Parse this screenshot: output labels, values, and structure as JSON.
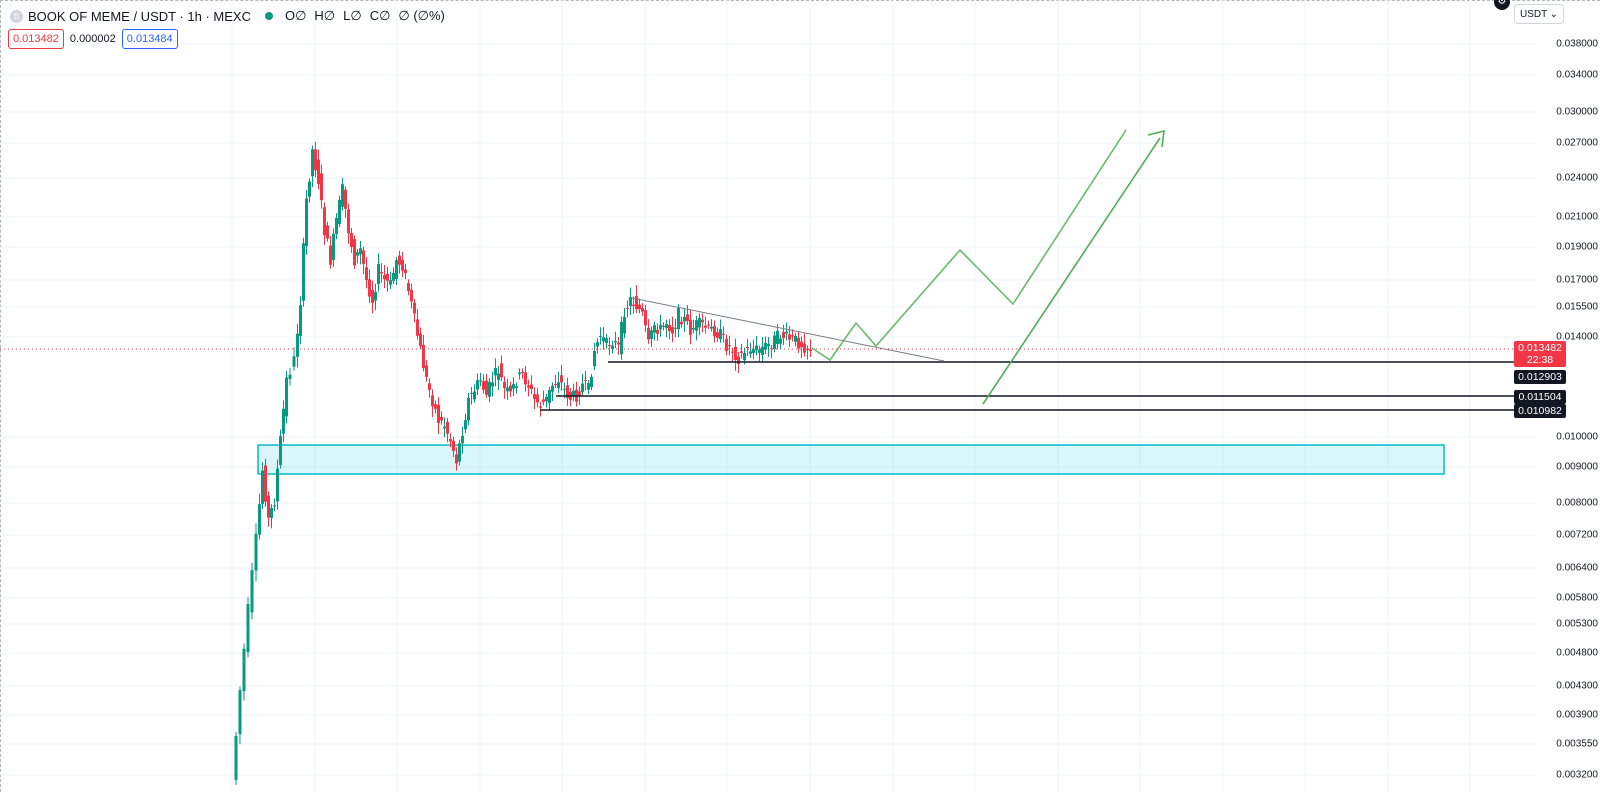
{
  "header": {
    "symbol_title": "BOOK OF MEME / USDT · 1h · MEXC",
    "logo_letter": "B",
    "ohlc": [
      "O∅",
      "H∅",
      "L∅",
      "C∅",
      "∅ (∅%)"
    ]
  },
  "price_row": {
    "sell": "0.013482",
    "spread": "0.000002",
    "buy": "0.013484"
  },
  "currency": {
    "label": "USDT",
    "chevron": "⌄"
  },
  "axis": {
    "ticks": [
      "0.038000",
      "0.034000",
      "0.030000",
      "0.027000",
      "0.024000",
      "0.021000",
      "0.019000",
      "0.017000",
      "0.015500",
      "0.014000",
      "0.010000",
      "0.009000",
      "0.008000",
      "0.007200",
      "0.006400",
      "0.005800",
      "0.005300",
      "0.004800",
      "0.004300",
      "0.003900",
      "0.003550",
      "0.003200"
    ],
    "current_price": "0.013482",
    "countdown": "22:38",
    "levels": [
      "0.012903",
      "0.011504",
      "0.010982"
    ]
  },
  "colors": {
    "up": "#089981",
    "down": "#f23645",
    "zone": "#00bcd4",
    "projection": "#4caf50",
    "level": "#131722"
  },
  "icons": {
    "settings": "settings-icon",
    "logo": "symbol-logo-icon",
    "live": "live-status-icon"
  }
}
